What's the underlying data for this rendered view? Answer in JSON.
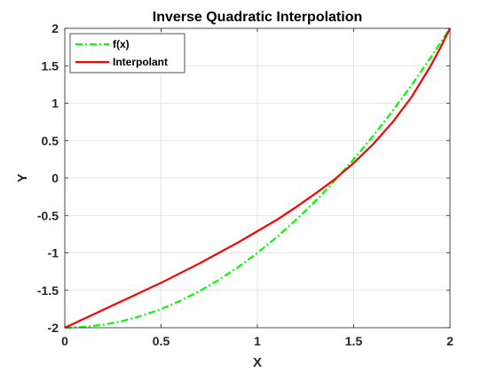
{
  "chart_data": {
    "type": "line",
    "title": "Inverse Quadratic Interpolation",
    "xlabel": "X",
    "ylabel": "Y",
    "xlim": [
      0,
      2
    ],
    "ylim": [
      -2,
      2
    ],
    "grid": true,
    "legend_position": "top-left",
    "x_ticks": [
      "0",
      "0.5",
      "1",
      "1.5",
      "2"
    ],
    "y_ticks": [
      "-2",
      "-1.5",
      "-1",
      "-0.5",
      "0",
      "0.5",
      "1",
      "1.5",
      "2"
    ],
    "series": [
      {
        "name": "f(x)",
        "color": "#00ff00",
        "style": "dash-dot",
        "x": [
          0,
          0.1,
          0.2,
          0.3,
          0.4,
          0.5,
          0.6,
          0.7,
          0.8,
          0.9,
          1.0,
          1.1,
          1.2,
          1.3,
          1.4,
          1.5,
          1.6,
          1.7,
          1.8,
          1.9,
          2.0
        ],
        "y": [
          -2.0,
          -1.99,
          -1.96,
          -1.91,
          -1.84,
          -1.75,
          -1.64,
          -1.51,
          -1.36,
          -1.19,
          -1.0,
          -0.79,
          -0.56,
          -0.31,
          -0.04,
          0.25,
          0.56,
          0.89,
          1.24,
          1.61,
          2.0
        ]
      },
      {
        "name": "Interpolant",
        "color": "#ff0000",
        "style": "solid",
        "x": [
          0,
          0.1,
          0.2,
          0.3,
          0.4,
          0.5,
          0.6,
          0.7,
          0.8,
          0.9,
          1.0,
          1.1,
          1.2,
          1.3,
          1.4,
          1.5,
          1.6,
          1.7,
          1.8,
          1.9,
          1.95,
          2.0
        ],
        "y": [
          -2.0,
          -1.88,
          -1.76,
          -1.64,
          -1.52,
          -1.4,
          -1.27,
          -1.14,
          -1.0,
          -0.86,
          -0.71,
          -0.56,
          -0.39,
          -0.21,
          -0.02,
          0.2,
          0.45,
          0.74,
          1.08,
          1.5,
          1.74,
          2.0
        ]
      }
    ]
  }
}
